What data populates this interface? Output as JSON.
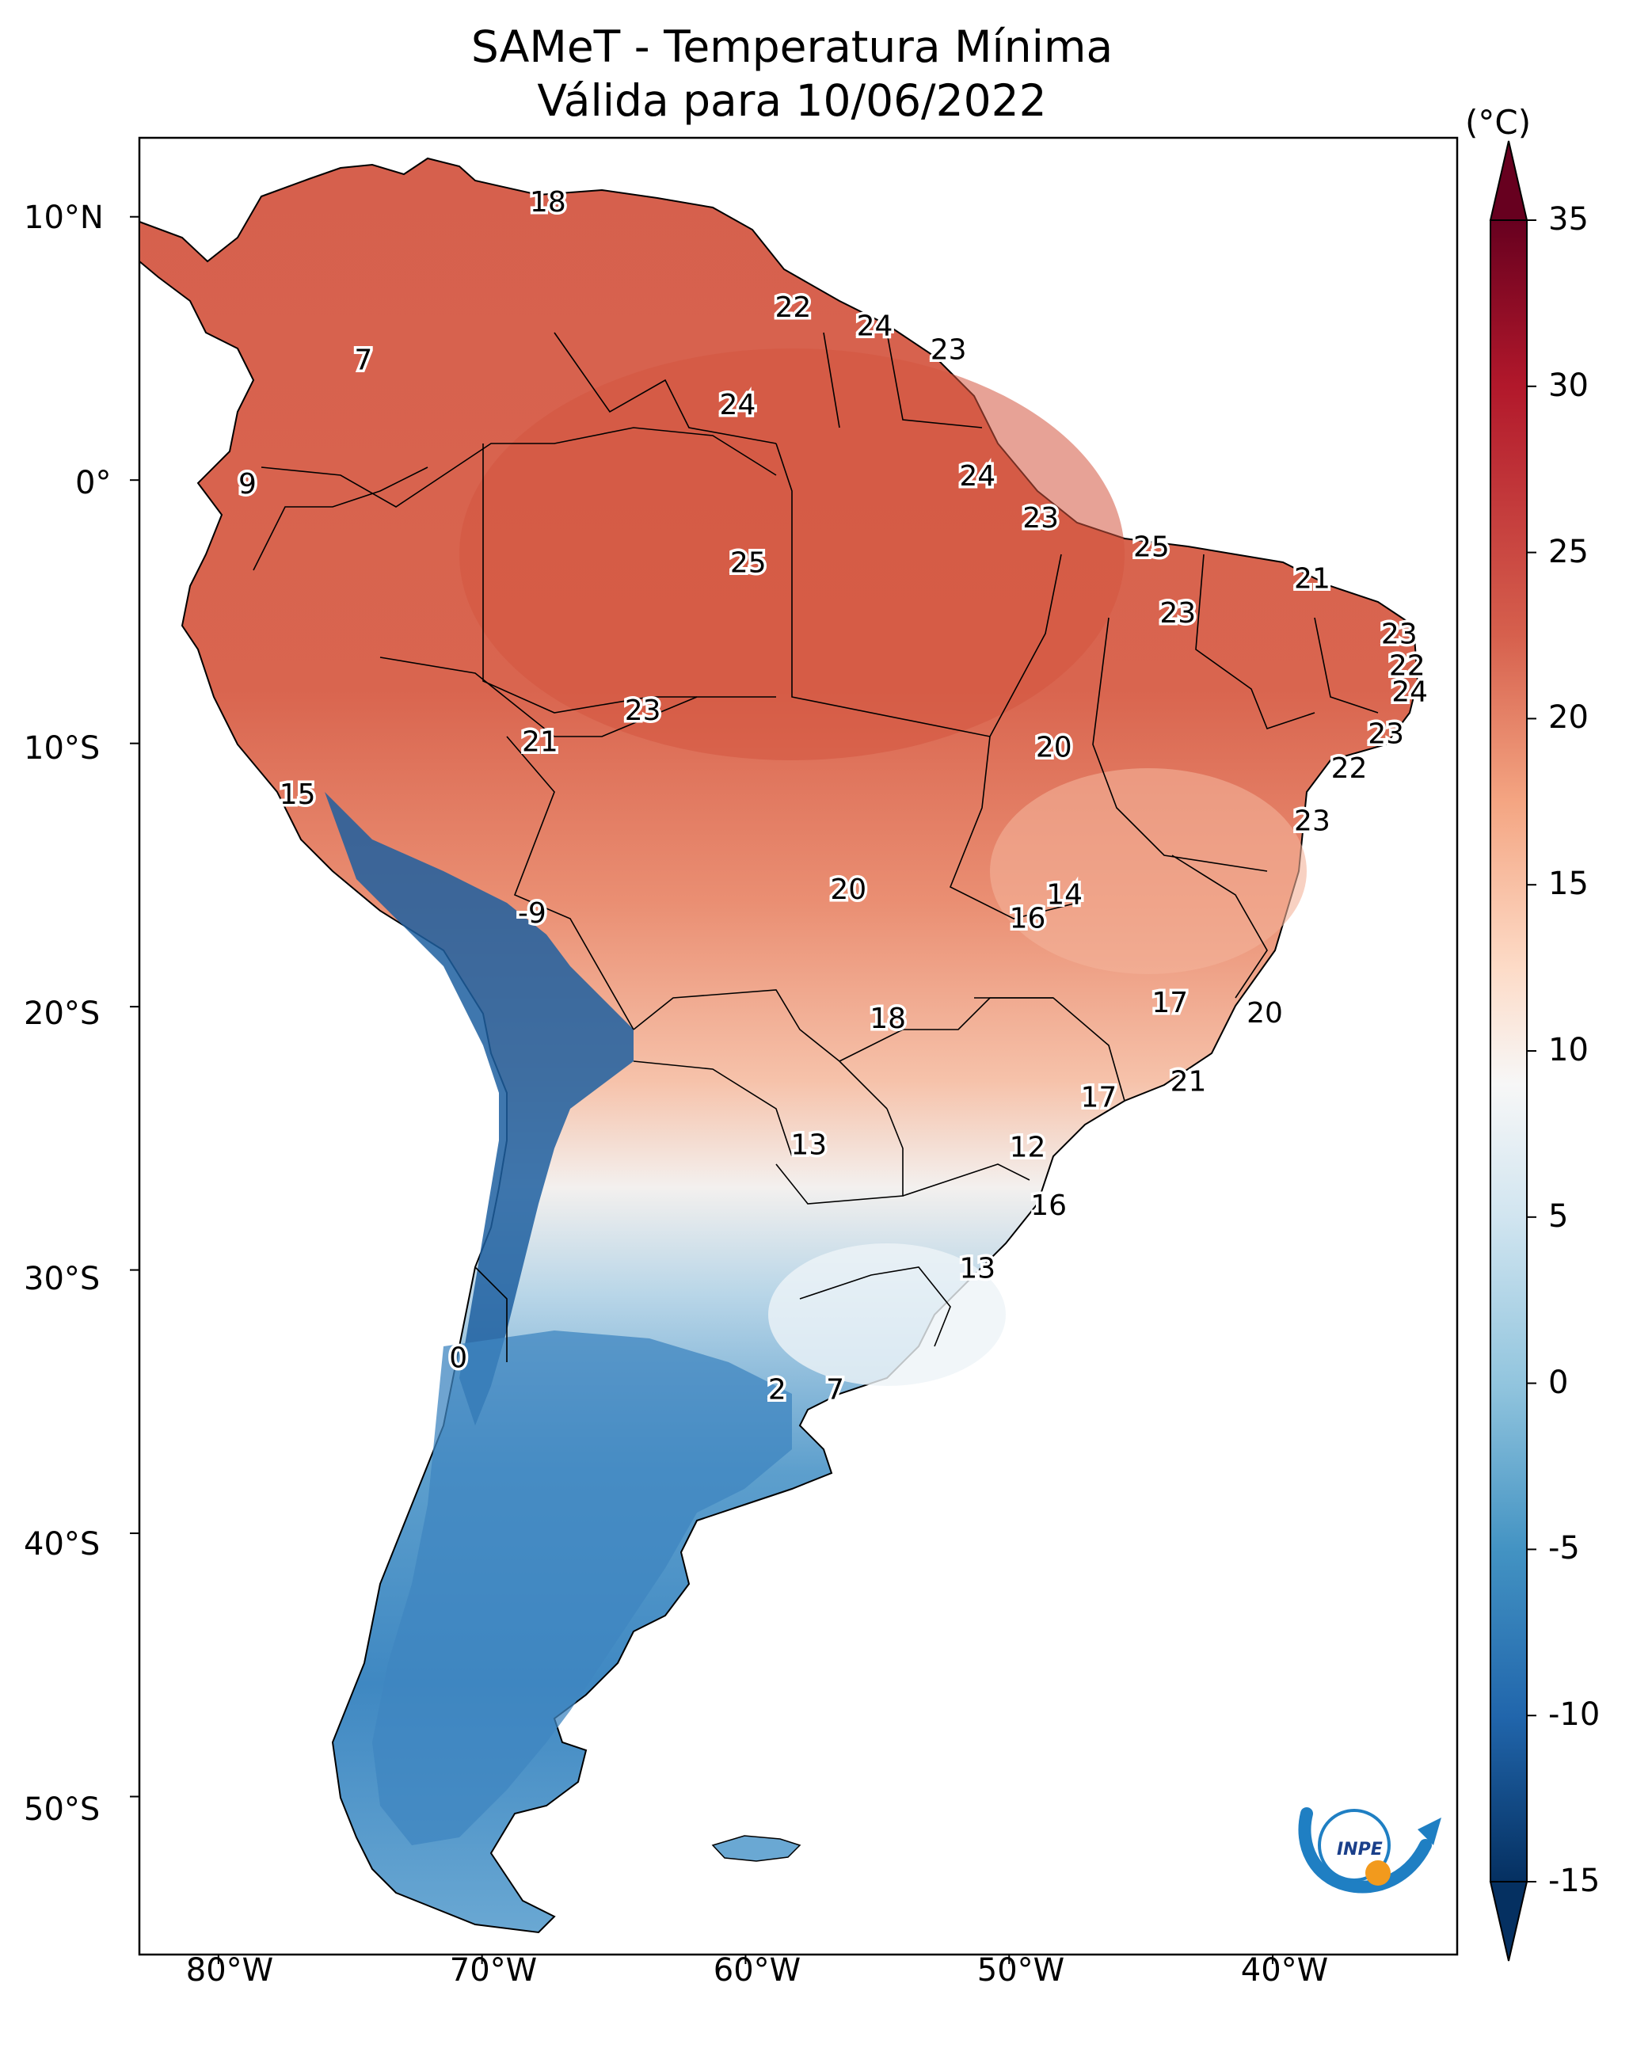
{
  "title": {
    "line1": "SAMeT - Temperatura Mínima",
    "line2": "Válida para 10/06/2022"
  },
  "colorbar": {
    "unit": "(°C)",
    "min": -15,
    "max": 35,
    "ticks": [
      "35",
      "30",
      "25",
      "20",
      "15",
      "10",
      "5",
      "0",
      "-5",
      "-10",
      "-15"
    ],
    "colors": [
      "#67001f",
      "#b2182b",
      "#d6604d",
      "#f4a582",
      "#fddbc7",
      "#f7f7f7",
      "#d1e5f0",
      "#92c5de",
      "#4393c3",
      "#2166ac",
      "#053061"
    ]
  },
  "axes": {
    "lat_labels": [
      "10°N",
      "0°",
      "10°S",
      "20°S",
      "30°S",
      "40°S",
      "50°S"
    ],
    "lon_labels": [
      "80°W",
      "70°W",
      "60°W",
      "50°W",
      "40°W"
    ]
  },
  "station_labels": [
    {
      "text": "18",
      "lon": -67.5,
      "lat": 10.5
    },
    {
      "text": "7",
      "lon": -74.5,
      "lat": 4.5
    },
    {
      "text": "22",
      "lon": -58.2,
      "lat": 6.5
    },
    {
      "text": "24",
      "lon": -55.1,
      "lat": 5.8
    },
    {
      "text": "23",
      "lon": -52.3,
      "lat": 4.9
    },
    {
      "text": "24",
      "lon": -60.3,
      "lat": 2.8
    },
    {
      "text": "9",
      "lon": -78.9,
      "lat": -0.2
    },
    {
      "text": "24",
      "lon": -51.2,
      "lat": 0.1
    },
    {
      "text": "23",
      "lon": -48.8,
      "lat": -1.5
    },
    {
      "text": "25",
      "lon": -59.9,
      "lat": -3.2
    },
    {
      "text": "25",
      "lon": -44.6,
      "lat": -2.6
    },
    {
      "text": "21",
      "lon": -38.5,
      "lat": -3.8
    },
    {
      "text": "23",
      "lon": -43.6,
      "lat": -5.1
    },
    {
      "text": "23",
      "lon": -35.2,
      "lat": -5.9
    },
    {
      "text": "22",
      "lon": -34.9,
      "lat": -7.1
    },
    {
      "text": "24",
      "lon": -34.8,
      "lat": -8.1
    },
    {
      "text": "23",
      "lon": -35.7,
      "lat": -9.7
    },
    {
      "text": "23",
      "lon": -63.9,
      "lat": -8.8
    },
    {
      "text": "21",
      "lon": -67.8,
      "lat": -10.0
    },
    {
      "text": "20",
      "lon": -48.3,
      "lat": -10.2
    },
    {
      "text": "22",
      "lon": -37.1,
      "lat": -11.0
    },
    {
      "text": "15",
      "lon": -77.0,
      "lat": -12.0
    },
    {
      "text": "23",
      "lon": -38.5,
      "lat": -13.0
    },
    {
      "text": "14",
      "lon": -47.9,
      "lat": -15.8
    },
    {
      "text": "20",
      "lon": -56.1,
      "lat": -15.6
    },
    {
      "text": "-9",
      "lon": -68.1,
      "lat": -16.5
    },
    {
      "text": "16",
      "lon": -49.3,
      "lat": -16.7
    },
    {
      "text": "17",
      "lon": -43.9,
      "lat": -19.9
    },
    {
      "text": "20",
      "lon": -40.3,
      "lat": -20.3
    },
    {
      "text": "18",
      "lon": -54.6,
      "lat": -20.5
    },
    {
      "text": "21",
      "lon": -43.2,
      "lat": -22.9
    },
    {
      "text": "17",
      "lon": -46.6,
      "lat": -23.5
    },
    {
      "text": "13",
      "lon": -57.6,
      "lat": -25.3
    },
    {
      "text": "12",
      "lon": -49.3,
      "lat": -25.4
    },
    {
      "text": "16",
      "lon": -48.5,
      "lat": -27.6
    },
    {
      "text": "13",
      "lon": -51.2,
      "lat": -30.0
    },
    {
      "text": "0",
      "lon": -70.9,
      "lat": -33.4
    },
    {
      "text": "2",
      "lon": -58.8,
      "lat": -34.6
    },
    {
      "text": "7",
      "lon": -56.6,
      "lat": -34.6
    }
  ],
  "logo": {
    "text": "INPE"
  }
}
